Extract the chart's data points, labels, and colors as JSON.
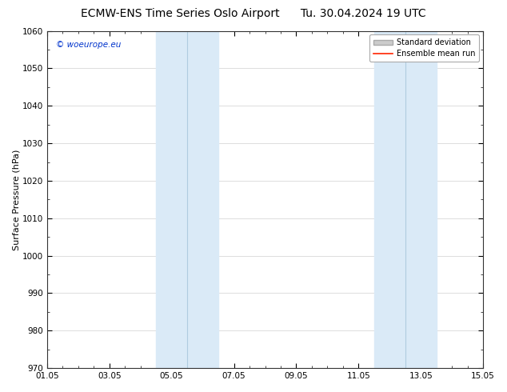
{
  "title_left": "ECMW-ENS Time Series Oslo Airport",
  "title_right": "Tu. 30.04.2024 19 UTC",
  "ylabel": "Surface Pressure (hPa)",
  "ylim": [
    970,
    1060
  ],
  "yticks": [
    970,
    980,
    990,
    1000,
    1010,
    1020,
    1030,
    1040,
    1050,
    1060
  ],
  "xtick_labels": [
    "01.05",
    "03.05",
    "05.05",
    "07.05",
    "09.05",
    "11.05",
    "13.05",
    "15.05"
  ],
  "xtick_positions": [
    0,
    2,
    4,
    6,
    8,
    10,
    12,
    14
  ],
  "xlim": [
    0,
    14
  ],
  "shaded_bands": [
    {
      "x_start": 3.5,
      "x_end": 4.0
    },
    {
      "x_start": 4.0,
      "x_end": 5.5
    }
  ],
  "shaded_bands2": [
    {
      "x_start": 10.5,
      "x_end": 11.0
    },
    {
      "x_start": 11.0,
      "x_end": 12.5
    }
  ],
  "shaded_color": "#daeaf7",
  "shaded_color2": "#daeaf7",
  "shaded_divider_color": "#b0cce0",
  "watermark_text": "© woeurope.eu",
  "watermark_color": "#0033cc",
  "legend_std_label": "Standard deviation",
  "legend_mean_label": "Ensemble mean run",
  "legend_std_color": "#cccccc",
  "legend_std_edge": "#aaaaaa",
  "legend_mean_color": "#ff2200",
  "bg_color": "#ffffff",
  "axis_color": "#333333",
  "grid_color": "#dddddd",
  "title_fontsize": 10,
  "label_fontsize": 8,
  "tick_fontsize": 7.5
}
